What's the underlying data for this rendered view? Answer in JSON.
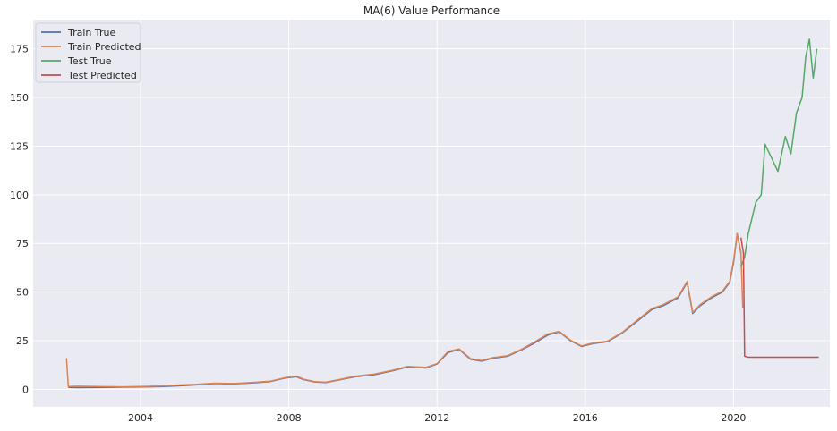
{
  "chart_data": {
    "type": "line",
    "title": "MA(6) Value Performance",
    "xlabel": "",
    "ylabel": "",
    "xlim": [
      2001.1,
      2022.6
    ],
    "ylim": [
      -9,
      190
    ],
    "x_ticks": [
      2004,
      2008,
      2012,
      2016,
      2020
    ],
    "y_ticks": [
      0,
      25,
      50,
      75,
      100,
      125,
      150,
      175
    ],
    "grid": true,
    "legend_position": "top-left",
    "series": [
      {
        "name": "Train True",
        "color": "#4c72b0",
        "x": [
          2002.05,
          2002.3,
          2003.0,
          2003.5,
          2004.0,
          2004.5,
          2005.0,
          2005.5,
          2006.0,
          2006.5,
          2007.0,
          2007.5,
          2007.9,
          2008.2,
          2008.4,
          2008.7,
          2009.0,
          2009.4,
          2009.8,
          2010.3,
          2010.8,
          2011.2,
          2011.7,
          2012.0,
          2012.3,
          2012.6,
          2012.9,
          2013.2,
          2013.5,
          2013.9,
          2014.3,
          2014.6,
          2015.0,
          2015.3,
          2015.6,
          2015.9,
          2016.2,
          2016.6,
          2017.0,
          2017.4,
          2017.8,
          2018.1,
          2018.5,
          2018.75,
          2018.9,
          2019.1,
          2019.4,
          2019.7,
          2019.9,
          2020.0,
          2020.1,
          2020.2
        ],
        "y": [
          1,
          0.9,
          1.0,
          1.1,
          1.2,
          1.4,
          1.8,
          2.3,
          3.0,
          2.8,
          3.3,
          4.0,
          5.8,
          6.5,
          5.0,
          3.8,
          3.5,
          5.0,
          6.5,
          7.5,
          9.5,
          11.5,
          11.0,
          13.0,
          19.0,
          20.5,
          15.5,
          14.5,
          16.0,
          17.0,
          20.5,
          23.5,
          28.0,
          29.5,
          25.0,
          22.0,
          23.5,
          24.5,
          29.0,
          35.0,
          41.0,
          43.0,
          47.0,
          55.0,
          39.0,
          43.0,
          47.0,
          50.0,
          55.0,
          65.0,
          80.0,
          70.0
        ]
      },
      {
        "name": "Train Predicted",
        "color": "#dd8452",
        "x": [
          2002.0,
          2002.05,
          2002.3,
          2003.0,
          2003.5,
          2004.0,
          2004.5,
          2005.0,
          2005.5,
          2006.0,
          2006.5,
          2007.0,
          2007.5,
          2007.9,
          2008.2,
          2008.4,
          2008.7,
          2009.0,
          2009.4,
          2009.8,
          2010.3,
          2010.8,
          2011.2,
          2011.7,
          2012.0,
          2012.3,
          2012.6,
          2012.9,
          2013.2,
          2013.5,
          2013.9,
          2014.3,
          2014.6,
          2015.0,
          2015.3,
          2015.6,
          2015.9,
          2016.2,
          2016.6,
          2017.0,
          2017.4,
          2017.8,
          2018.1,
          2018.5,
          2018.75,
          2018.9,
          2019.1,
          2019.4,
          2019.7,
          2019.9,
          2020.0,
          2020.1,
          2020.2,
          2020.25
        ],
        "y": [
          16,
          1.5,
          1.6,
          1.4,
          1.3,
          1.5,
          1.7,
          2.2,
          2.6,
          3.2,
          3.0,
          3.5,
          4.2,
          6.0,
          6.8,
          5.2,
          4.0,
          3.7,
          5.2,
          6.8,
          7.8,
          9.8,
          11.8,
          11.3,
          13.2,
          19.5,
          20.8,
          15.8,
          14.8,
          16.3,
          17.3,
          20.8,
          24.0,
          28.5,
          29.8,
          25.3,
          22.3,
          23.8,
          24.8,
          29.3,
          35.5,
          41.5,
          43.5,
          47.5,
          55.5,
          39.5,
          43.5,
          47.5,
          50.5,
          55.5,
          66.0,
          80.0,
          70.0,
          42.0
        ]
      },
      {
        "name": "Test True",
        "color": "#55a868",
        "x": [
          2020.2,
          2020.3,
          2020.4,
          2020.6,
          2020.75,
          2020.85,
          2021.0,
          2021.2,
          2021.4,
          2021.55,
          2021.7,
          2021.85,
          2021.95,
          2022.05,
          2022.15,
          2022.25
        ],
        "y": [
          63,
          68,
          80,
          96,
          100,
          126,
          120,
          112,
          130,
          121,
          142,
          150,
          171,
          180,
          160,
          175
        ]
      },
      {
        "name": "Test Predicted",
        "color": "#c44e52",
        "x": [
          2020.2,
          2020.27,
          2020.3,
          2020.4,
          2021.0,
          2021.5,
          2022.0,
          2022.3
        ],
        "y": [
          78,
          70,
          17,
          16.5,
          16.5,
          16.5,
          16.5,
          16.5
        ]
      }
    ]
  }
}
